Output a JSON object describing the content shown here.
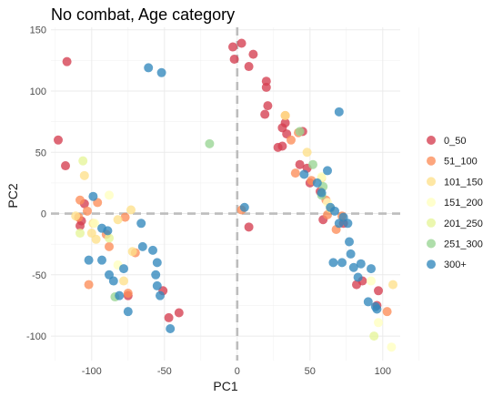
{
  "chart_data": {
    "type": "scatter",
    "title": "No combat, Age category",
    "xlabel": "PC1",
    "ylabel": "PC2",
    "xlim": [
      -128,
      112
    ],
    "ylim": [
      -120,
      152
    ],
    "xticks": [
      -100,
      -50,
      0,
      50,
      100
    ],
    "xtick_labels": [
      "-100",
      "-50",
      "0",
      "50",
      "100"
    ],
    "yticks": [
      150,
      100,
      50,
      0,
      -50,
      -100
    ],
    "ytick_labels": [
      "150",
      "100",
      "50",
      "0",
      "-50",
      "-100"
    ],
    "grid": true,
    "reference_lines": {
      "x": 0,
      "y": 0,
      "style": "dashed"
    },
    "legend_position": "right",
    "series": [
      {
        "name": "0_50",
        "color": "#d53e4f",
        "points": [
          [
            -117,
            124
          ],
          [
            -123,
            60
          ],
          [
            -118,
            39
          ],
          [
            -108,
            -10
          ],
          [
            -105,
            8
          ],
          [
            -107,
            -6
          ],
          [
            -3,
            136
          ],
          [
            3,
            139
          ],
          [
            -2,
            126
          ],
          [
            11,
            130
          ],
          [
            8,
            120
          ],
          [
            20,
            108
          ],
          [
            20,
            103
          ],
          [
            21,
            88
          ],
          [
            19,
            81
          ],
          [
            33,
            74
          ],
          [
            31,
            70
          ],
          [
            34,
            65
          ],
          [
            31,
            55
          ],
          [
            28,
            54
          ],
          [
            43,
            40
          ],
          [
            48,
            37
          ],
          [
            45,
            67
          ],
          [
            50,
            25
          ],
          [
            57,
            18
          ],
          [
            8,
            -11
          ],
          [
            59,
            -5
          ],
          [
            73,
            -8
          ],
          [
            86,
            -55
          ],
          [
            82,
            -58
          ],
          [
            97,
            -63
          ],
          [
            96,
            -75
          ],
          [
            -75,
            -67
          ],
          [
            -51,
            -63
          ],
          [
            -40,
            -81
          ],
          [
            -47,
            -85
          ]
        ]
      },
      {
        "name": "51_100",
        "color": "#fc8d59",
        "points": [
          [
            -108,
            11
          ],
          [
            -103,
            2
          ],
          [
            -109,
            -3
          ],
          [
            -102,
            -58
          ],
          [
            -96,
            9
          ],
          [
            -88,
            -27
          ],
          [
            -90,
            -17
          ],
          [
            -77,
            -3
          ],
          [
            -75,
            -65
          ],
          [
            -70,
            -32
          ],
          [
            33,
            80
          ],
          [
            37,
            60
          ],
          [
            40,
            33
          ],
          [
            42,
            66
          ],
          [
            51,
            27
          ],
          [
            3,
            3
          ],
          [
            61,
            11
          ],
          [
            62,
            -1
          ],
          [
            68,
            -13
          ],
          [
            72,
            -2
          ],
          [
            103,
            -80
          ]
        ]
      },
      {
        "name": "101_150",
        "color": "#fee08b",
        "points": [
          [
            -111,
            -2
          ],
          [
            -105,
            31
          ],
          [
            -100,
            -16
          ],
          [
            -97,
            -21
          ],
          [
            -99,
            -8
          ],
          [
            -82,
            -5
          ],
          [
            -78,
            -55
          ],
          [
            -73,
            3
          ],
          [
            -72,
            -31
          ],
          [
            33,
            80
          ],
          [
            48,
            50
          ],
          [
            58,
            29
          ],
          [
            64,
            4
          ],
          [
            107,
            -58
          ]
        ]
      },
      {
        "name": "151_200",
        "color": "#ffffbf",
        "points": [
          [
            -88,
            15
          ],
          [
            -98,
            -8
          ],
          [
            -82,
            -42
          ],
          [
            58,
            30
          ],
          [
            62,
            9
          ],
          [
            97,
            -89
          ],
          [
            106,
            -109
          ],
          [
            92,
            -55
          ]
        ]
      },
      {
        "name": "201_250",
        "color": "#e6f598",
        "points": [
          [
            -106,
            43
          ],
          [
            -108,
            -16
          ],
          [
            -88,
            -20
          ],
          [
            94,
            -100
          ]
        ]
      },
      {
        "name": "251_300",
        "color": "#99d594",
        "points": [
          [
            -19,
            57
          ],
          [
            43,
            67
          ],
          [
            52,
            40
          ],
          [
            58,
            15
          ],
          [
            59,
            22
          ],
          [
            -84,
            -68
          ]
        ]
      },
      {
        "name": "300+",
        "color": "#3288bd",
        "points": [
          [
            -61,
            119
          ],
          [
            -52,
            115
          ],
          [
            -99,
            14
          ],
          [
            -93,
            -12
          ],
          [
            -89,
            -14
          ],
          [
            -102,
            -38
          ],
          [
            -93,
            -38
          ],
          [
            -88,
            -50
          ],
          [
            -85,
            -55
          ],
          [
            -78,
            -45
          ],
          [
            -75,
            -80
          ],
          [
            -81,
            -67
          ],
          [
            -66,
            -8
          ],
          [
            -65,
            -27
          ],
          [
            -58,
            -30
          ],
          [
            -56,
            -50
          ],
          [
            -55,
            -59
          ],
          [
            -53,
            -67
          ],
          [
            -55,
            -40
          ],
          [
            -46,
            -94
          ],
          [
            5,
            5
          ],
          [
            46,
            32
          ],
          [
            55,
            25
          ],
          [
            58,
            17
          ],
          [
            62,
            35
          ],
          [
            64,
            5
          ],
          [
            66,
            -40
          ],
          [
            67,
            2
          ],
          [
            70,
            83
          ],
          [
            70,
            -8
          ],
          [
            72,
            -40
          ],
          [
            73,
            -3
          ],
          [
            76,
            -8
          ],
          [
            77,
            -23
          ],
          [
            78,
            -33
          ],
          [
            80,
            -44
          ],
          [
            83,
            -52
          ],
          [
            85,
            -41
          ],
          [
            90,
            -72
          ],
          [
            92,
            -45
          ],
          [
            95,
            -76
          ],
          [
            96,
            -78
          ]
        ]
      }
    ]
  }
}
